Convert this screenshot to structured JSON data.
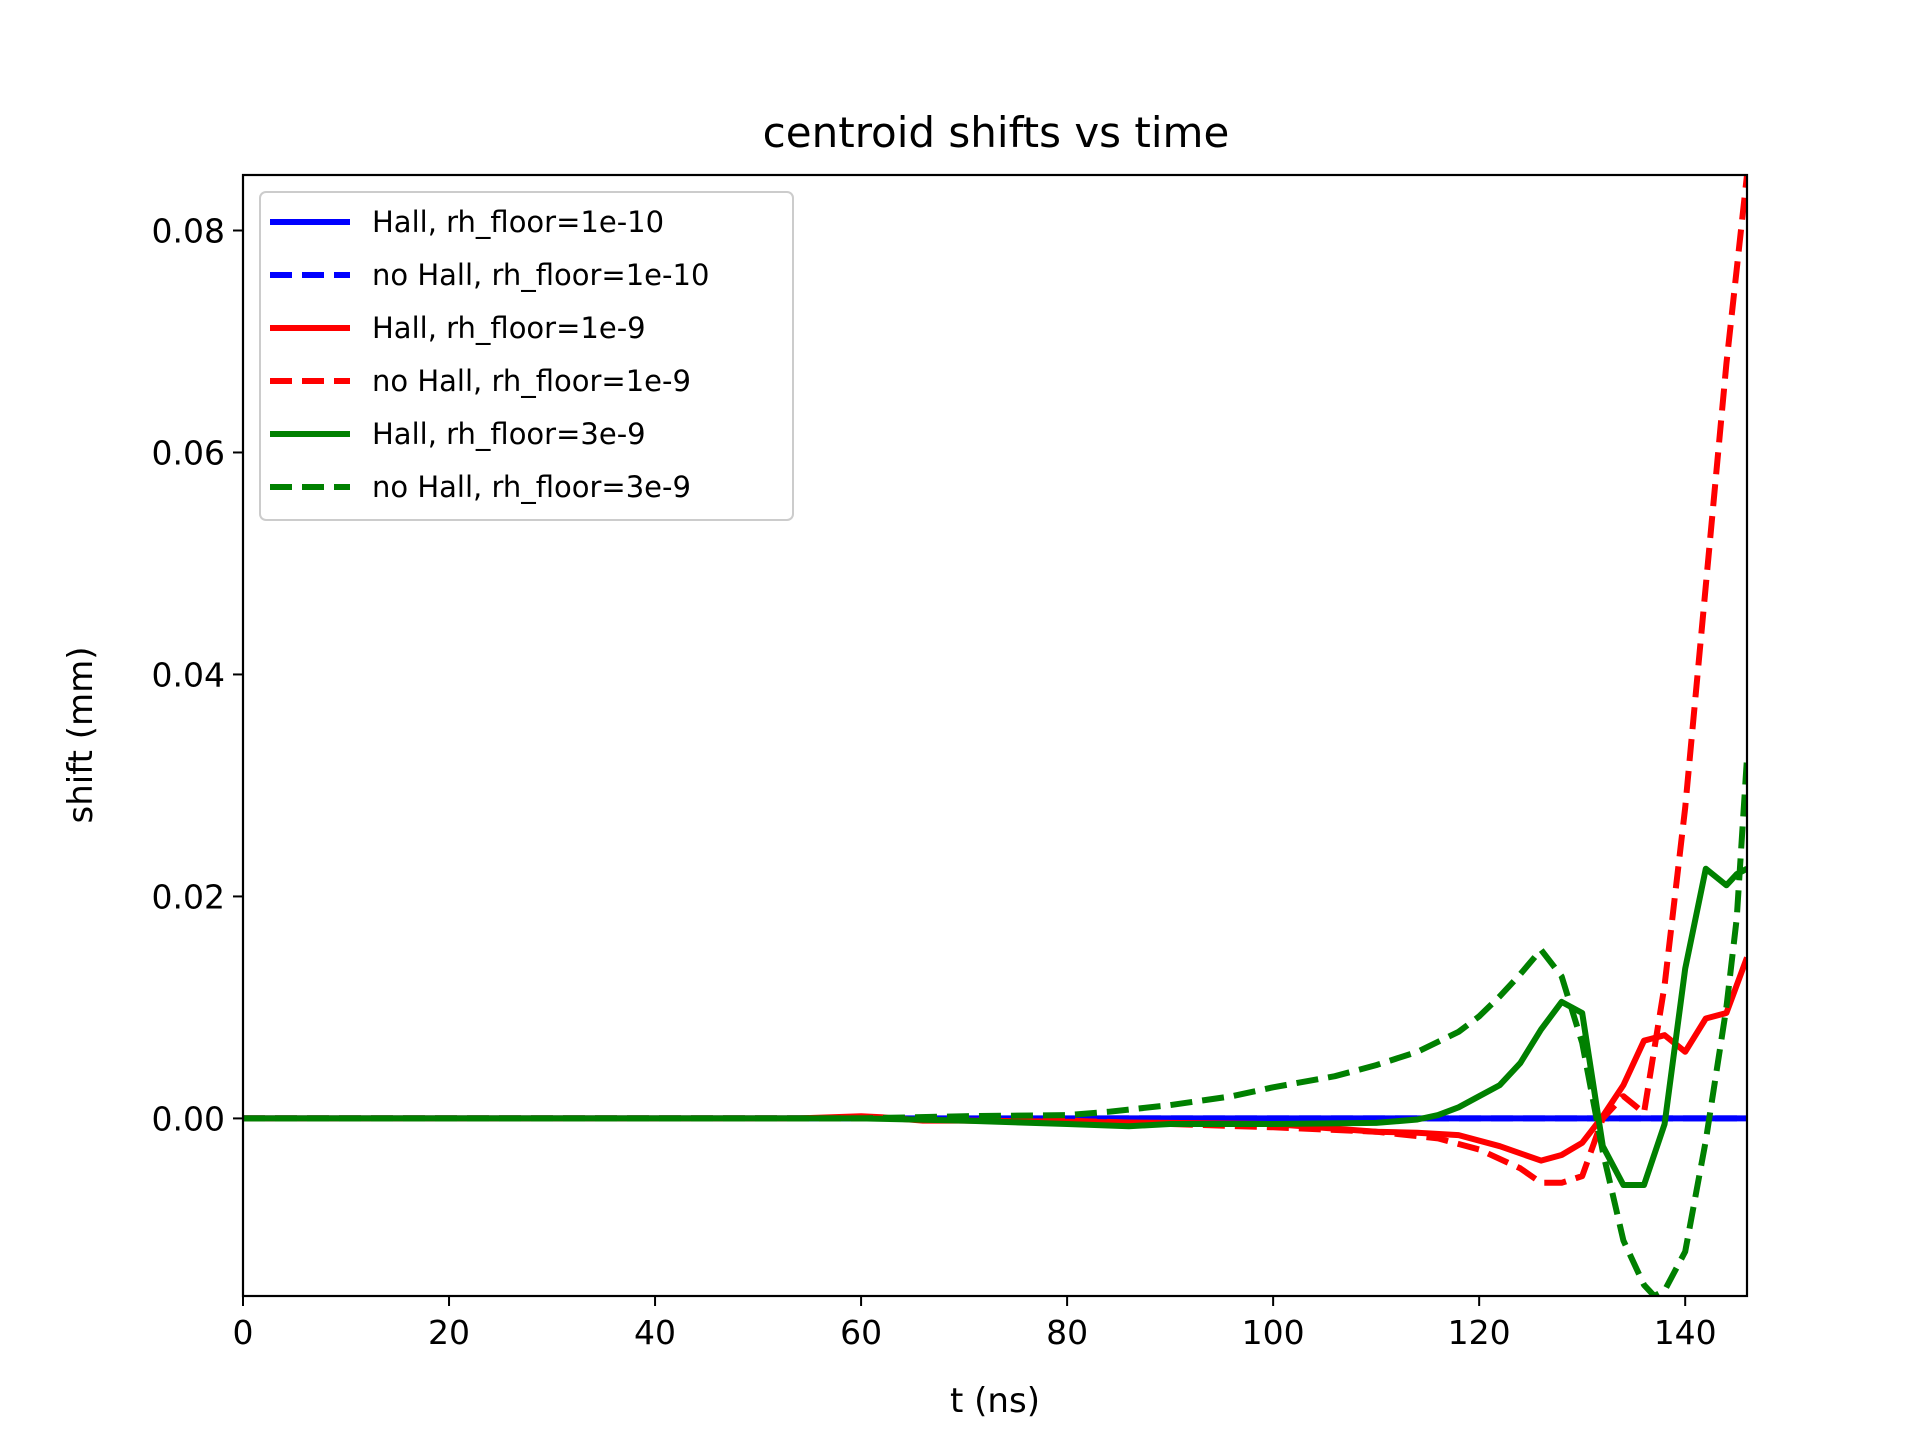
{
  "chart_data": {
    "type": "line",
    "title": "centroid shifts vs time",
    "xlabel": "t (ns)",
    "ylabel": "shift (mm)",
    "xlim": [
      0,
      146
    ],
    "ylim": [
      -0.016,
      0.085
    ],
    "xticks": [
      0,
      20,
      40,
      60,
      80,
      100,
      120,
      140
    ],
    "xtick_labels": [
      "0",
      "20",
      "40",
      "60",
      "80",
      "100",
      "120",
      "140"
    ],
    "yticks": [
      0.0,
      0.02,
      0.04,
      0.06,
      0.08
    ],
    "ytick_labels": [
      "0.00",
      "0.02",
      "0.04",
      "0.06",
      "0.08"
    ],
    "grid": false,
    "legend_position": "top-left",
    "series": [
      {
        "name": "Hall, rh_floor=1e-10",
        "color": "#0000ff",
        "dash": "solid",
        "x": [
          0,
          20,
          40,
          60,
          80,
          100,
          120,
          140,
          146
        ],
        "y": [
          0,
          0,
          0,
          0,
          0,
          0,
          0,
          0,
          0
        ]
      },
      {
        "name": "no Hall, rh_floor=1e-10",
        "color": "#0000ff",
        "dash": "dashed",
        "x": [
          0,
          20,
          40,
          60,
          80,
          100,
          120,
          140,
          146
        ],
        "y": [
          0,
          0,
          0,
          0,
          0,
          0,
          0,
          0,
          0
        ]
      },
      {
        "name": "Hall, rh_floor=1e-9",
        "color": "#ff0000",
        "dash": "solid",
        "x": [
          0,
          20,
          40,
          54,
          60,
          62,
          66,
          70,
          80,
          90,
          100,
          110,
          114,
          118,
          122,
          126,
          128,
          130,
          132,
          134,
          136,
          138,
          140,
          142,
          144,
          146
        ],
        "y": [
          0,
          0,
          0,
          0,
          0.0002,
          0.0001,
          -0.0002,
          -0.0002,
          -0.0003,
          -0.0004,
          -0.0005,
          -0.0012,
          -0.0013,
          -0.0015,
          -0.0025,
          -0.0038,
          -0.0033,
          -0.0022,
          0.0002,
          0.003,
          0.007,
          0.0075,
          0.006,
          0.009,
          0.0095,
          0.0145
        ]
      },
      {
        "name": "no Hall, rh_floor=1e-9",
        "color": "#ff0000",
        "dash": "dashed",
        "x": [
          0,
          20,
          40,
          60,
          70,
          80,
          90,
          100,
          110,
          116,
          120,
          124,
          126,
          128,
          130,
          132,
          134,
          136,
          138,
          140,
          142,
          144,
          146
        ],
        "y": [
          0,
          0,
          0,
          0,
          0,
          -0.0002,
          -0.0005,
          -0.0008,
          -0.0012,
          -0.0018,
          -0.0028,
          -0.0045,
          -0.0058,
          -0.0058,
          -0.0052,
          0,
          0.002,
          0.0005,
          0.012,
          0.028,
          0.048,
          0.068,
          0.085
        ]
      },
      {
        "name": "Hall, rh_floor=3e-9",
        "color": "#008000",
        "dash": "solid",
        "x": [
          0,
          20,
          40,
          60,
          70,
          80,
          86,
          90,
          100,
          110,
          114,
          116,
          118,
          120,
          122,
          124,
          126,
          128,
          130,
          131,
          132,
          134,
          136,
          138,
          140,
          142,
          144,
          145,
          146
        ],
        "y": [
          0,
          0,
          0,
          0,
          -0.0002,
          -0.0005,
          -0.0007,
          -0.0005,
          -0.0005,
          -0.0004,
          -0.0001,
          0.0003,
          0.001,
          0.002,
          0.003,
          0.005,
          0.008,
          0.0105,
          0.0095,
          0.0035,
          -0.0025,
          -0.006,
          -0.006,
          -0.0005,
          0.0135,
          0.0225,
          0.021,
          0.022,
          0.0225
        ]
      },
      {
        "name": "no Hall, rh_floor=3e-9",
        "color": "#008000",
        "dash": "dashed",
        "x": [
          0,
          20,
          40,
          60,
          70,
          80,
          84,
          90,
          96,
          100,
          106,
          110,
          114,
          118,
          120,
          122,
          124,
          126,
          128,
          130,
          132,
          134,
          136,
          137,
          138,
          140,
          142,
          144,
          145,
          146
        ],
        "y": [
          0,
          0,
          0,
          0,
          0.0002,
          0.0003,
          0.0006,
          0.0012,
          0.002,
          0.0028,
          0.0038,
          0.0048,
          0.006,
          0.0078,
          0.0092,
          0.011,
          0.013,
          0.0152,
          0.0128,
          0.0068,
          -0.003,
          -0.011,
          -0.015,
          -0.016,
          -0.0155,
          -0.012,
          -0.002,
          0.01,
          0.018,
          0.0325
        ]
      }
    ]
  }
}
